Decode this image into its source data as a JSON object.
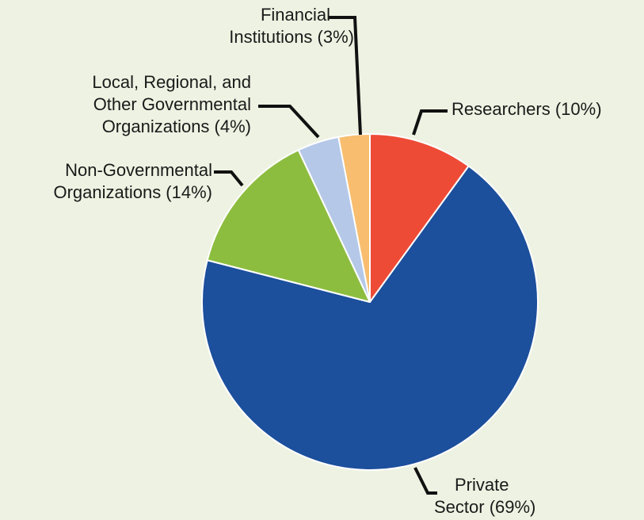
{
  "chart_data": {
    "type": "pie",
    "title": "",
    "slices": [
      {
        "label_lines": [
          "Researchers  (10%)"
        ],
        "value": 10,
        "color": "#ee4b36"
      },
      {
        "label_lines": [
          "Private",
          "Sector (69%)"
        ],
        "value": 69,
        "color": "#1c4f9c"
      },
      {
        "label_lines": [
          "Non-Governmental",
          "Organizations (14%)"
        ],
        "value": 14,
        "color": "#8dbd3f"
      },
      {
        "label_lines": [
          "Local, Regional, and",
          "Other Governmental",
          "Organizations (4%)"
        ],
        "value": 4,
        "color": "#b5c8e8"
      },
      {
        "label_lines": [
          "Financial",
          "Institutions (3%)"
        ],
        "value": 3,
        "color": "#f8bd6e"
      }
    ]
  }
}
